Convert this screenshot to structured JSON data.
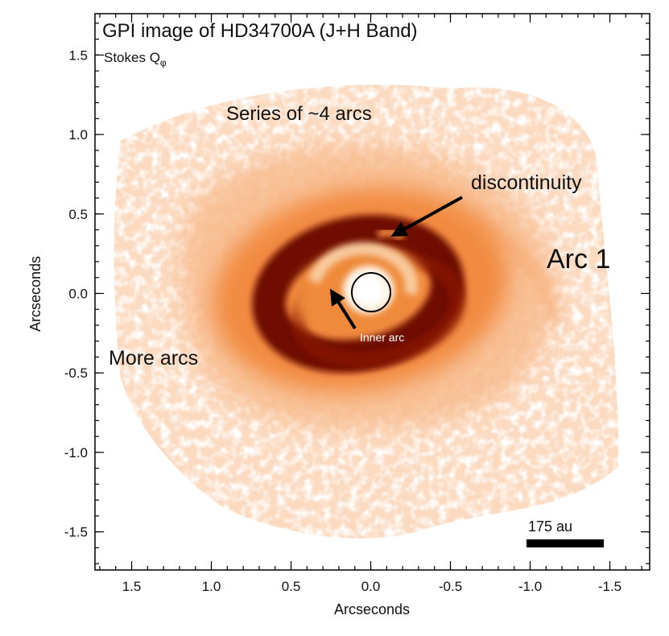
{
  "figure": {
    "title": "GPI image of HD34700A (J+H Band)",
    "subtitle_base": "Stokes Q",
    "subtitle_sub": "φ",
    "xlabel": "Arcseconds",
    "ylabel": "Arcseconds",
    "x_ticks": [
      "1.5",
      "1.0",
      "0.5",
      "0.0",
      "-0.5",
      "-1.0",
      "-1.5"
    ],
    "x_tick_values": [
      1.5,
      1.0,
      0.5,
      0.0,
      -0.5,
      -1.0,
      -1.5
    ],
    "y_ticks": [
      "1.5",
      "1.0",
      "0.5",
      "0.0",
      "-0.5",
      "-1.0",
      "-1.5"
    ],
    "y_tick_values": [
      1.5,
      1.0,
      0.5,
      0.0,
      -0.5,
      -1.0,
      -1.5
    ],
    "x_range": [
      1.73,
      -1.75
    ],
    "y_range": [
      -1.74,
      1.76
    ],
    "colormap": [
      "#ffffff",
      "#fbd4b3",
      "#f59a55",
      "#e2601c",
      "#a82a04",
      "#4a0400"
    ]
  },
  "annotations": {
    "series_of_arcs": "Series of ~4 arcs",
    "discontinuity": "discontinuity",
    "arc1": "Arc 1",
    "more_arcs": "More arcs",
    "inner_arc": "Inner arc"
  },
  "scale_bar": {
    "label": "175 au"
  }
}
